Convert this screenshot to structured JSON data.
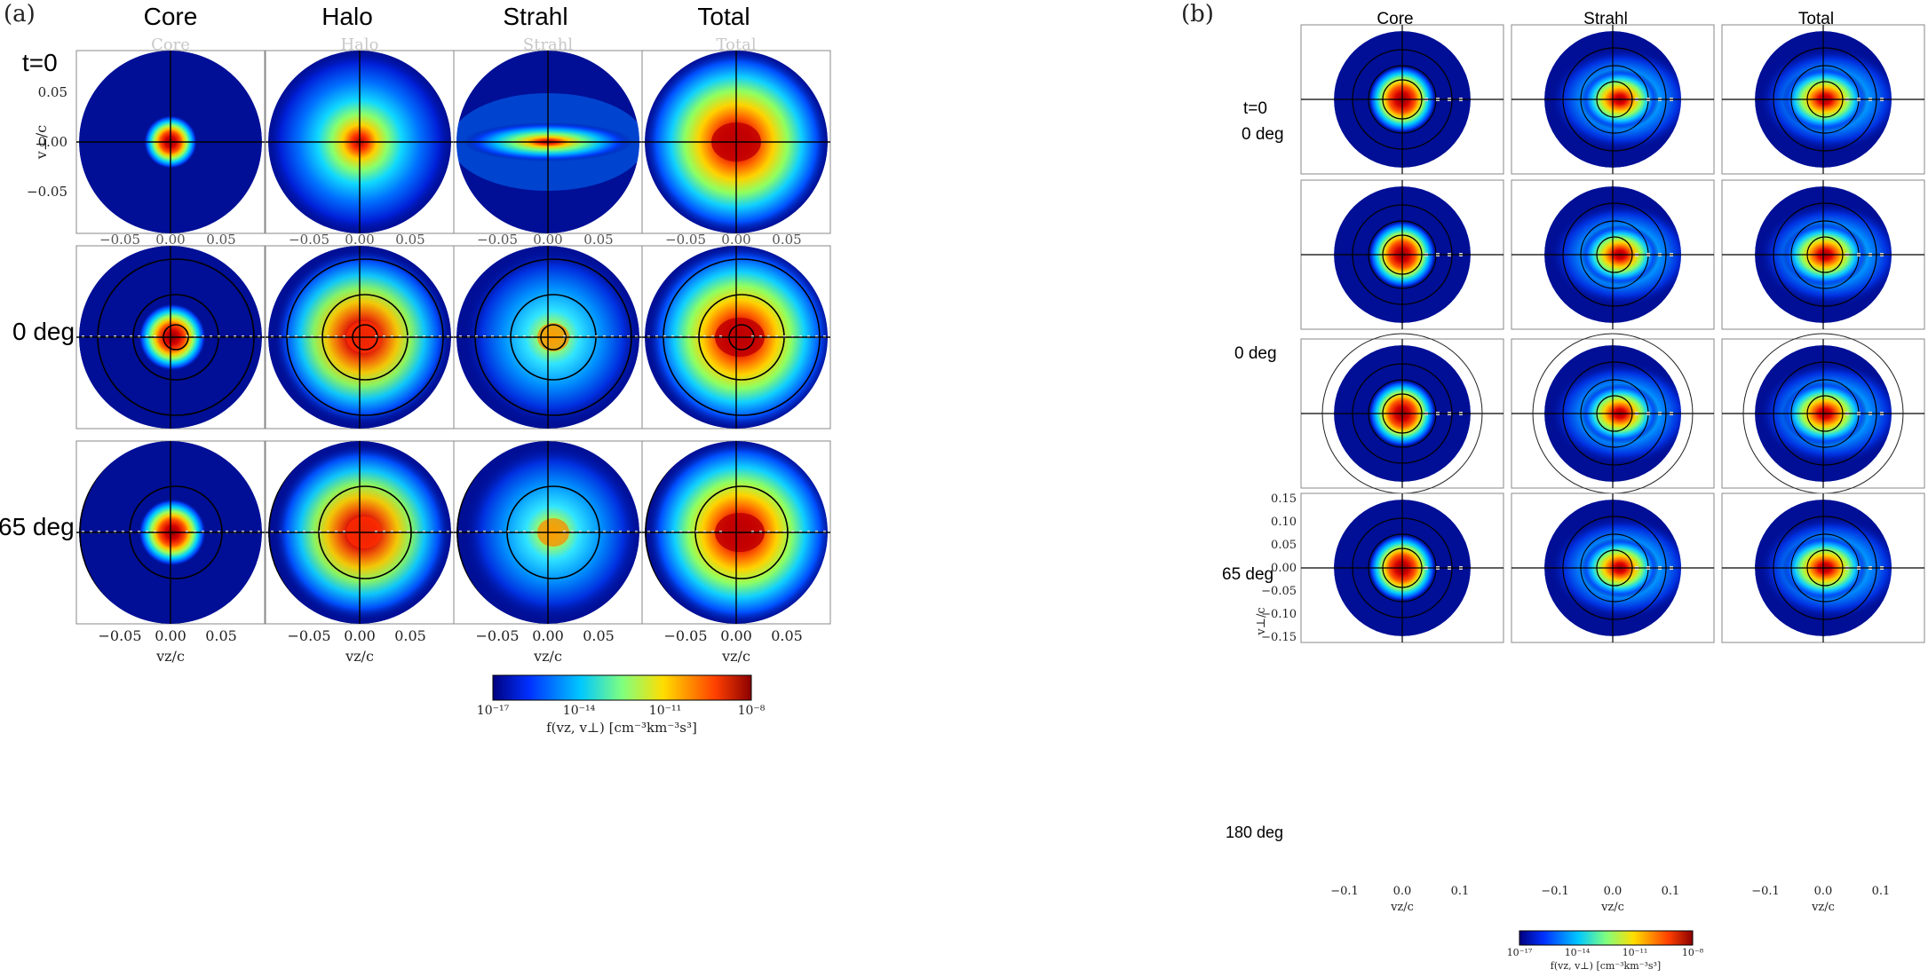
{
  "panel_a": {
    "label": "(a)",
    "columns": [
      "Core",
      "Halo",
      "Strahl",
      "Total"
    ],
    "faded_titles": [
      "Core",
      "Halo",
      "Strahl",
      "Total"
    ],
    "row_labels": [
      "t=0",
      "0 deg",
      "65 deg"
    ],
    "y_axis_label": "v⊥/c",
    "y_ticks": [
      "0.05",
      "0.00",
      "−0.05"
    ],
    "x_axis_label": "vz/c",
    "x_ticks": [
      "−0.05",
      "0.00",
      "0.05"
    ],
    "colorbar": {
      "ticks": [
        "10⁻¹⁷",
        "10⁻¹⁴",
        "10⁻¹¹",
        "10⁻⁸"
      ],
      "label": "f(vz, v⊥) [cm⁻³km⁻³s³]"
    }
  },
  "panel_b": {
    "label": "(b)",
    "columns": [
      "Core",
      "Strahl",
      "Total"
    ],
    "row_labels": [
      "t=0",
      "0 deg",
      "0 deg",
      "65 deg",
      "180 deg"
    ],
    "y_axis_label": "v⊥/c",
    "y_ticks": [
      "0.15",
      "0.10",
      "0.05",
      "0.00",
      "−0.05",
      "−0.10",
      "−0.15"
    ],
    "x_axis_label": "vz/c",
    "x_ticks": [
      "−0.1",
      "0.0",
      "0.1"
    ],
    "colorbar": {
      "ticks": [
        "10⁻¹⁷",
        "10⁻¹⁴",
        "10⁻¹¹",
        "10⁻⁸"
      ],
      "label": "f(vz, v⊥) [cm⁻³km⁻³s³]"
    }
  },
  "colors": {
    "background": "#000f96",
    "frame": "#888888",
    "colormap": [
      "#00007f",
      "#0030ff",
      "#00c8ff",
      "#7fff7f",
      "#ffdd00",
      "#ff4000",
      "#8b0000"
    ]
  }
}
